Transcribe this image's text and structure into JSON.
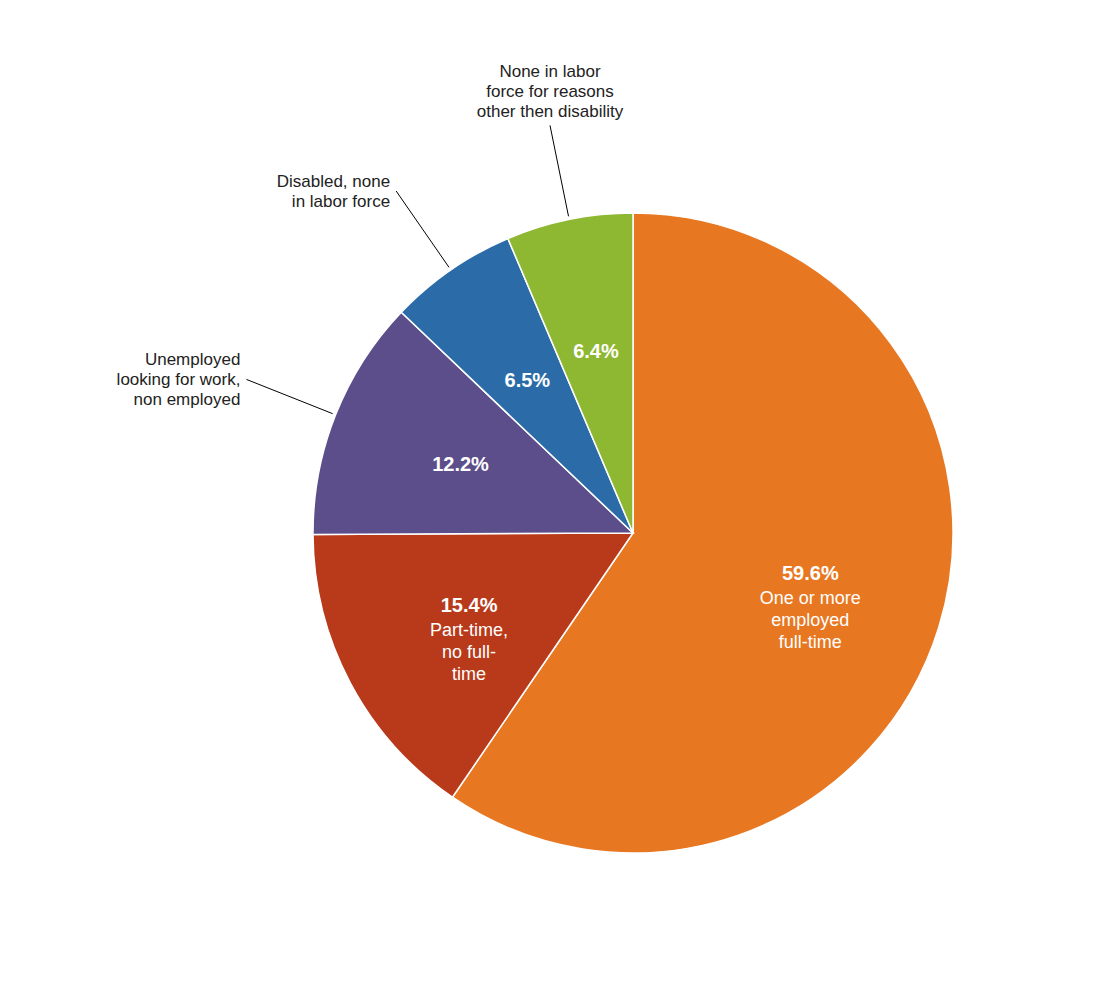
{
  "chart_data": {
    "type": "pie",
    "categories": [
      "One or more\nemployed\nfull-time",
      "Part-time,\nno full-\ntime",
      "Unemployed\nlooking for work,\nnon employed",
      "Disabled, none\nin labor force",
      "None in labor\nforce for reasons\nother then disability"
    ],
    "values": [
      59.6,
      15.4,
      12.2,
      6.5,
      6.4
    ],
    "value_labels": [
      "59.6%",
      "15.4%",
      "12.2%",
      "6.5%",
      "6.4%"
    ],
    "colors": [
      "#E87722",
      "#B83A1A",
      "#5B4E8A",
      "#2B6CA8",
      "#8FB832"
    ],
    "data_labels": true
  }
}
